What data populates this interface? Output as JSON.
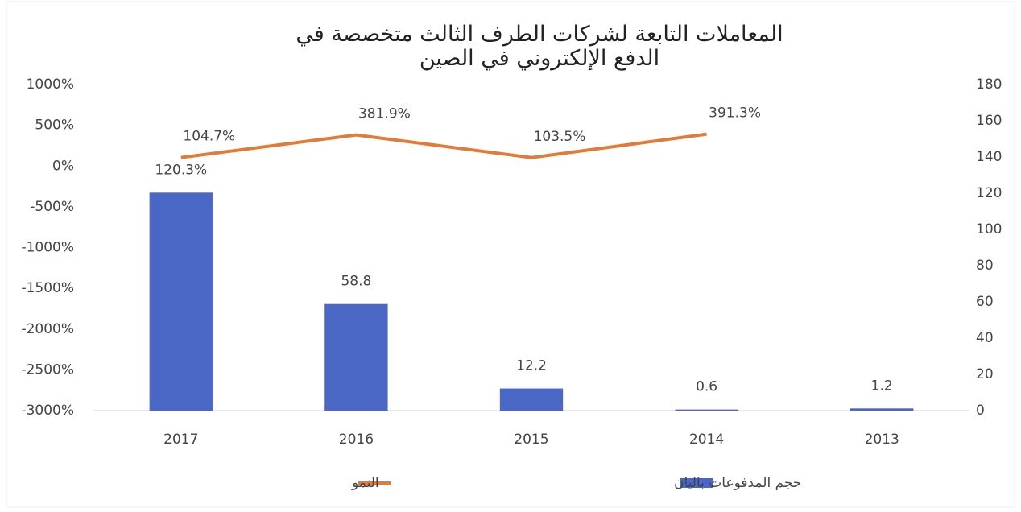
{
  "chart_data": {
    "type": "bar_line",
    "title": "المعاملات التابعة لشركات الطرف الثالث متخصصة في الدفع الإلكتروني في الصين",
    "categories": [
      "2017",
      "2016",
      "2015",
      "2014",
      "2013"
    ],
    "series": [
      {
        "name": "حجم المدفوعات باليان",
        "type": "bar",
        "axis": "y2",
        "color": "#4a67c6",
        "values": [
          120.3,
          58.8,
          12.2,
          0.6,
          1.2
        ],
        "value_labels": [
          "120.3%",
          "58.8",
          "12.2",
          "0.6",
          "1.2"
        ]
      },
      {
        "name": "النمو",
        "type": "line",
        "axis": "y",
        "color": "#e07b39",
        "values": [
          104.7,
          381.9,
          103.5,
          391.3,
          null
        ],
        "value_labels": [
          "104.7%",
          "381.9%",
          "103.5%",
          "391.3%",
          null
        ]
      }
    ],
    "ylim": [
      -3000,
      1000
    ],
    "yticks": [
      {
        "value": -3000,
        "label": "-3000%"
      },
      {
        "value": -2500,
        "label": "-2500%"
      },
      {
        "value": -2000,
        "label": "-2000%"
      },
      {
        "value": -1500,
        "label": "-1500%"
      },
      {
        "value": -1000,
        "label": "-1000%"
      },
      {
        "value": -500,
        "label": "-500%"
      },
      {
        "value": 0,
        "label": "0%"
      },
      {
        "value": 500,
        "label": "500%"
      },
      {
        "value": 1000,
        "label": "1000%"
      }
    ],
    "y2lim": [
      0,
      180
    ],
    "y2ticks": [
      0,
      20,
      40,
      60,
      80,
      100,
      120,
      140,
      160,
      180
    ],
    "grid": false,
    "legend": "bottom"
  }
}
